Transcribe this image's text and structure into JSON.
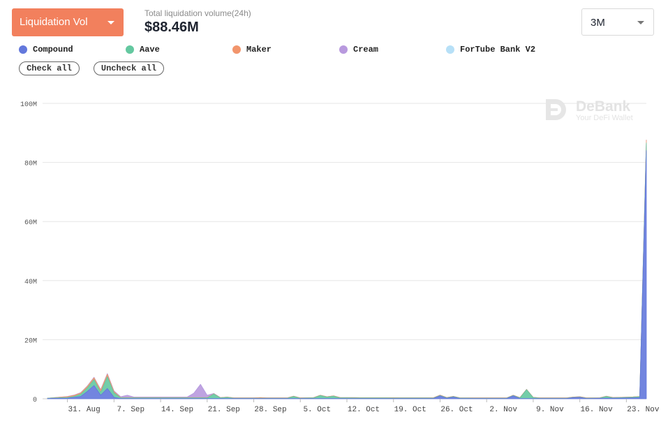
{
  "header": {
    "metric_dropdown_label": "Liquidation Vol",
    "total_label": "Total liquidation volume(24h)",
    "total_value": "$88.46M",
    "range_label": "3M"
  },
  "legend": {
    "items": [
      {
        "label": "Compound",
        "color": "#6378dc"
      },
      {
        "label": "Aave",
        "color": "#64c8a0"
      },
      {
        "label": "Maker",
        "color": "#f2956c"
      },
      {
        "label": "Cream",
        "color": "#b899de"
      },
      {
        "label": "ForTube Bank V2",
        "color": "#b7e0f7"
      }
    ],
    "check_all_label": "Check all",
    "uncheck_all_label": "Uncheck all"
  },
  "watermark": {
    "brand": "DeBank",
    "tagline": "Your DeFi Wallet"
  },
  "chart_data": {
    "type": "area",
    "stacked": true,
    "x_start": "2020-08-28",
    "x_end": "2020-11-26",
    "x_ticks": [
      "31. Aug",
      "7. Sep",
      "14. Sep",
      "21. Sep",
      "28. Sep",
      "5. Oct",
      "12. Oct",
      "19. Oct",
      "26. Oct",
      "2. Nov",
      "9. Nov",
      "16. Nov",
      "23. Nov"
    ],
    "y_ticks": [
      "0",
      "20M",
      "40M",
      "60M",
      "80M",
      "100M"
    ],
    "ylim": [
      0,
      100
    ],
    "y_unit": "M",
    "grid": true,
    "series": [
      {
        "name": "Compound",
        "color": "#6378dc",
        "points": [
          [
            "2020-08-28",
            0.1
          ],
          [
            "2020-08-31",
            0.2
          ],
          [
            "2020-09-02",
            0.8
          ],
          [
            "2020-09-03",
            2.5
          ],
          [
            "2020-09-04",
            4.5
          ],
          [
            "2020-09-05",
            1.2
          ],
          [
            "2020-09-06",
            3.5
          ],
          [
            "2020-09-07",
            0.5
          ],
          [
            "2020-09-08",
            0.1
          ],
          [
            "2020-10-25",
            0.1
          ],
          [
            "2020-10-26",
            1.0
          ],
          [
            "2020-10-27",
            0.2
          ],
          [
            "2020-10-28",
            0.6
          ],
          [
            "2020-10-29",
            0.1
          ],
          [
            "2020-11-05",
            0.1
          ],
          [
            "2020-11-06",
            1.0
          ],
          [
            "2020-11-07",
            0.1
          ],
          [
            "2020-11-14",
            0.1
          ],
          [
            "2020-11-15",
            0.4
          ],
          [
            "2020-11-16",
            0.5
          ],
          [
            "2020-11-17",
            0.1
          ],
          [
            "2020-11-24",
            0.3
          ],
          [
            "2020-11-25",
            0.4
          ],
          [
            "2020-11-26",
            84.0
          ]
        ]
      },
      {
        "name": "Aave",
        "color": "#64c8a0",
        "points": [
          [
            "2020-08-28",
            0.1
          ],
          [
            "2020-09-01",
            0.3
          ],
          [
            "2020-09-03",
            1.2
          ],
          [
            "2020-09-04",
            2.0
          ],
          [
            "2020-09-05",
            1.0
          ],
          [
            "2020-09-06",
            4.0
          ],
          [
            "2020-09-07",
            1.5
          ],
          [
            "2020-09-08",
            0.2
          ],
          [
            "2020-09-21",
            0.2
          ],
          [
            "2020-09-22",
            1.5
          ],
          [
            "2020-09-23",
            0.2
          ],
          [
            "2020-09-24",
            0.4
          ],
          [
            "2020-09-25",
            0.1
          ],
          [
            "2020-10-03",
            0.1
          ],
          [
            "2020-10-04",
            0.7
          ],
          [
            "2020-10-05",
            0.1
          ],
          [
            "2020-10-07",
            0.2
          ],
          [
            "2020-10-08",
            1.0
          ],
          [
            "2020-10-09",
            0.5
          ],
          [
            "2020-10-10",
            0.8
          ],
          [
            "2020-10-11",
            0.2
          ],
          [
            "2020-11-06",
            0.1
          ],
          [
            "2020-11-07",
            0.2
          ],
          [
            "2020-11-08",
            3.0
          ],
          [
            "2020-11-09",
            0.3
          ],
          [
            "2020-11-10",
            0.1
          ],
          [
            "2020-11-19",
            0.1
          ],
          [
            "2020-11-20",
            0.6
          ],
          [
            "2020-11-21",
            0.1
          ],
          [
            "2020-11-25",
            0.3
          ],
          [
            "2020-11-26",
            2.6
          ]
        ]
      },
      {
        "name": "Maker",
        "color": "#f2956c",
        "points": [
          [
            "2020-08-28",
            0.0
          ],
          [
            "2020-09-03",
            0.5
          ],
          [
            "2020-09-04",
            0.6
          ],
          [
            "2020-09-06",
            0.8
          ],
          [
            "2020-09-07",
            0.4
          ],
          [
            "2020-09-08",
            0.1
          ],
          [
            "2020-09-28",
            0.1
          ],
          [
            "2020-09-29",
            0.2
          ],
          [
            "2020-09-30",
            0.1
          ],
          [
            "2020-11-25",
            0.1
          ],
          [
            "2020-11-26",
            1.0
          ]
        ]
      },
      {
        "name": "Cream",
        "color": "#b899de",
        "points": [
          [
            "2020-08-28",
            0.0
          ],
          [
            "2020-09-08",
            0.3
          ],
          [
            "2020-09-09",
            0.8
          ],
          [
            "2020-09-10",
            0.2
          ],
          [
            "2020-09-18",
            0.2
          ],
          [
            "2020-09-19",
            1.5
          ],
          [
            "2020-09-20",
            4.5
          ],
          [
            "2020-09-21",
            0.8
          ],
          [
            "2020-09-22",
            0.1
          ]
        ]
      },
      {
        "name": "ForTube Bank V2",
        "color": "#b7e0f7",
        "points": [
          [
            "2020-08-28",
            0.0
          ],
          [
            "2020-11-26",
            0.0
          ]
        ]
      }
    ]
  }
}
